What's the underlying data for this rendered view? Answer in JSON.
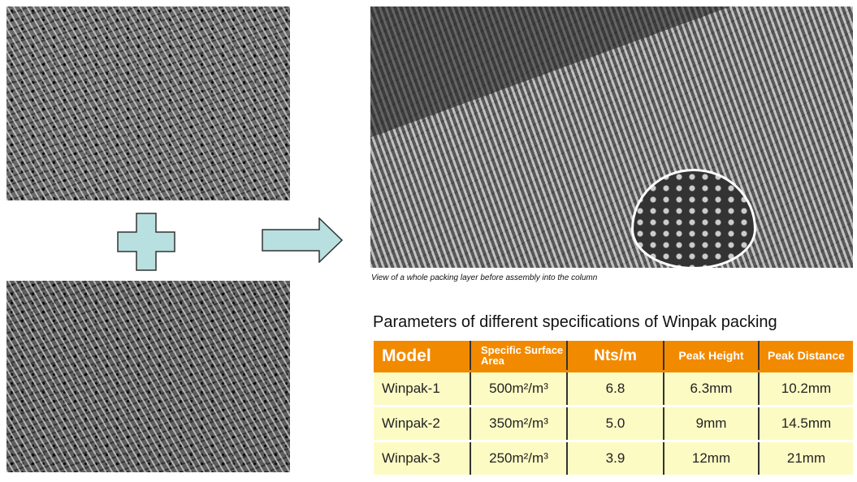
{
  "images": {
    "top_left": "mesh-sheet-1",
    "bottom_left": "mesh-sheet-2",
    "photo": "packing-layer-photo"
  },
  "caption": "View of a whole packing layer before assembly into the column",
  "title": "Parameters of different specifications of  Winpak  packing",
  "colors": {
    "header": "#f28a00",
    "row": "#fdfbc4",
    "shapes": "#b8e0e0"
  },
  "table": {
    "headers": [
      "Model",
      "Specific Surface Area",
      "Nts/m",
      "Peak Height",
      "Peak Distance"
    ],
    "rows": [
      [
        "Winpak-1",
        "500m²/m³",
        "6.8",
        "6.3mm",
        "10.2mm"
      ],
      [
        "Winpak-2",
        "350m²/m³",
        "5.0",
        "9mm",
        "14.5mm"
      ],
      [
        "Winpak-3",
        "250m²/m³",
        "3.9",
        "12mm",
        "21mm"
      ]
    ]
  }
}
